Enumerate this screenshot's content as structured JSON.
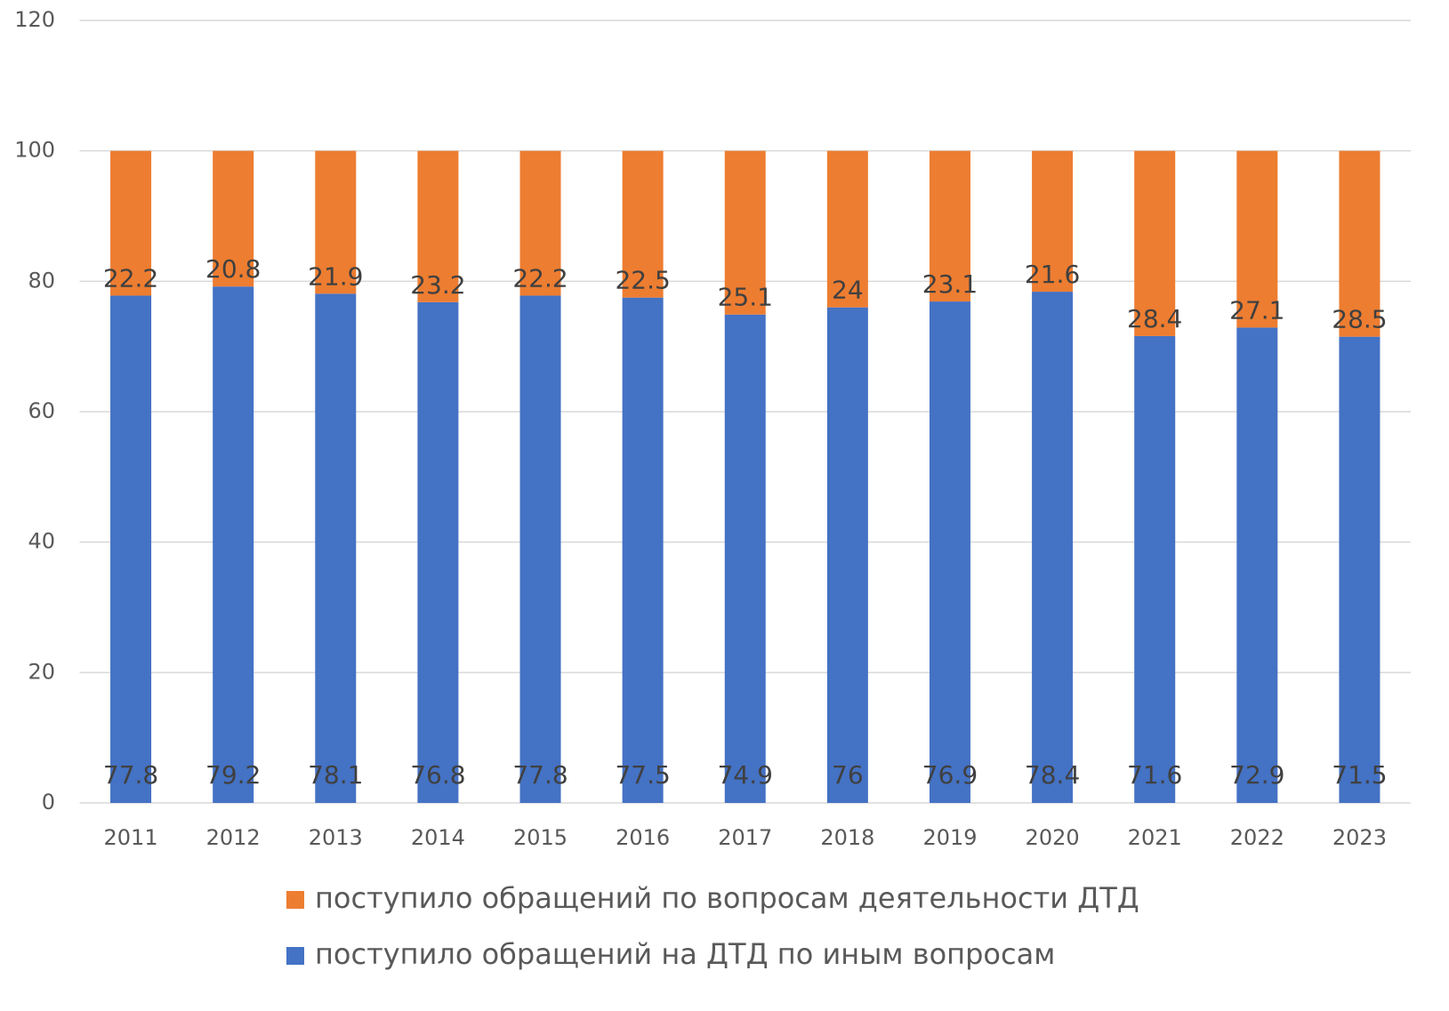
{
  "chart_data": {
    "type": "stacked_bar",
    "categories": [
      "2011",
      "2012",
      "2013",
      "2014",
      "2015",
      "2016",
      "2017",
      "2018",
      "2019",
      "2020",
      "2021",
      "2022",
      "2023"
    ],
    "series": [
      {
        "name": "поступило обращений на ДТД по иным вопросам",
        "color": "#4472c4",
        "values": [
          77.8,
          79.2,
          78.1,
          76.8,
          77.8,
          77.5,
          74.9,
          76,
          76.9,
          78.4,
          71.6,
          72.9,
          71.5
        ]
      },
      {
        "name": "поступило обращений по вопросам деятельности ДТД",
        "color": "#ed7d31",
        "values": [
          22.2,
          20.8,
          21.9,
          23.2,
          22.2,
          22.5,
          25.1,
          24,
          23.1,
          21.6,
          28.4,
          27.1,
          28.5
        ]
      }
    ],
    "ylim": [
      0,
      120
    ],
    "yticks": [
      0,
      20,
      40,
      60,
      80,
      100,
      120
    ],
    "grid": true,
    "legend": "bottom"
  }
}
